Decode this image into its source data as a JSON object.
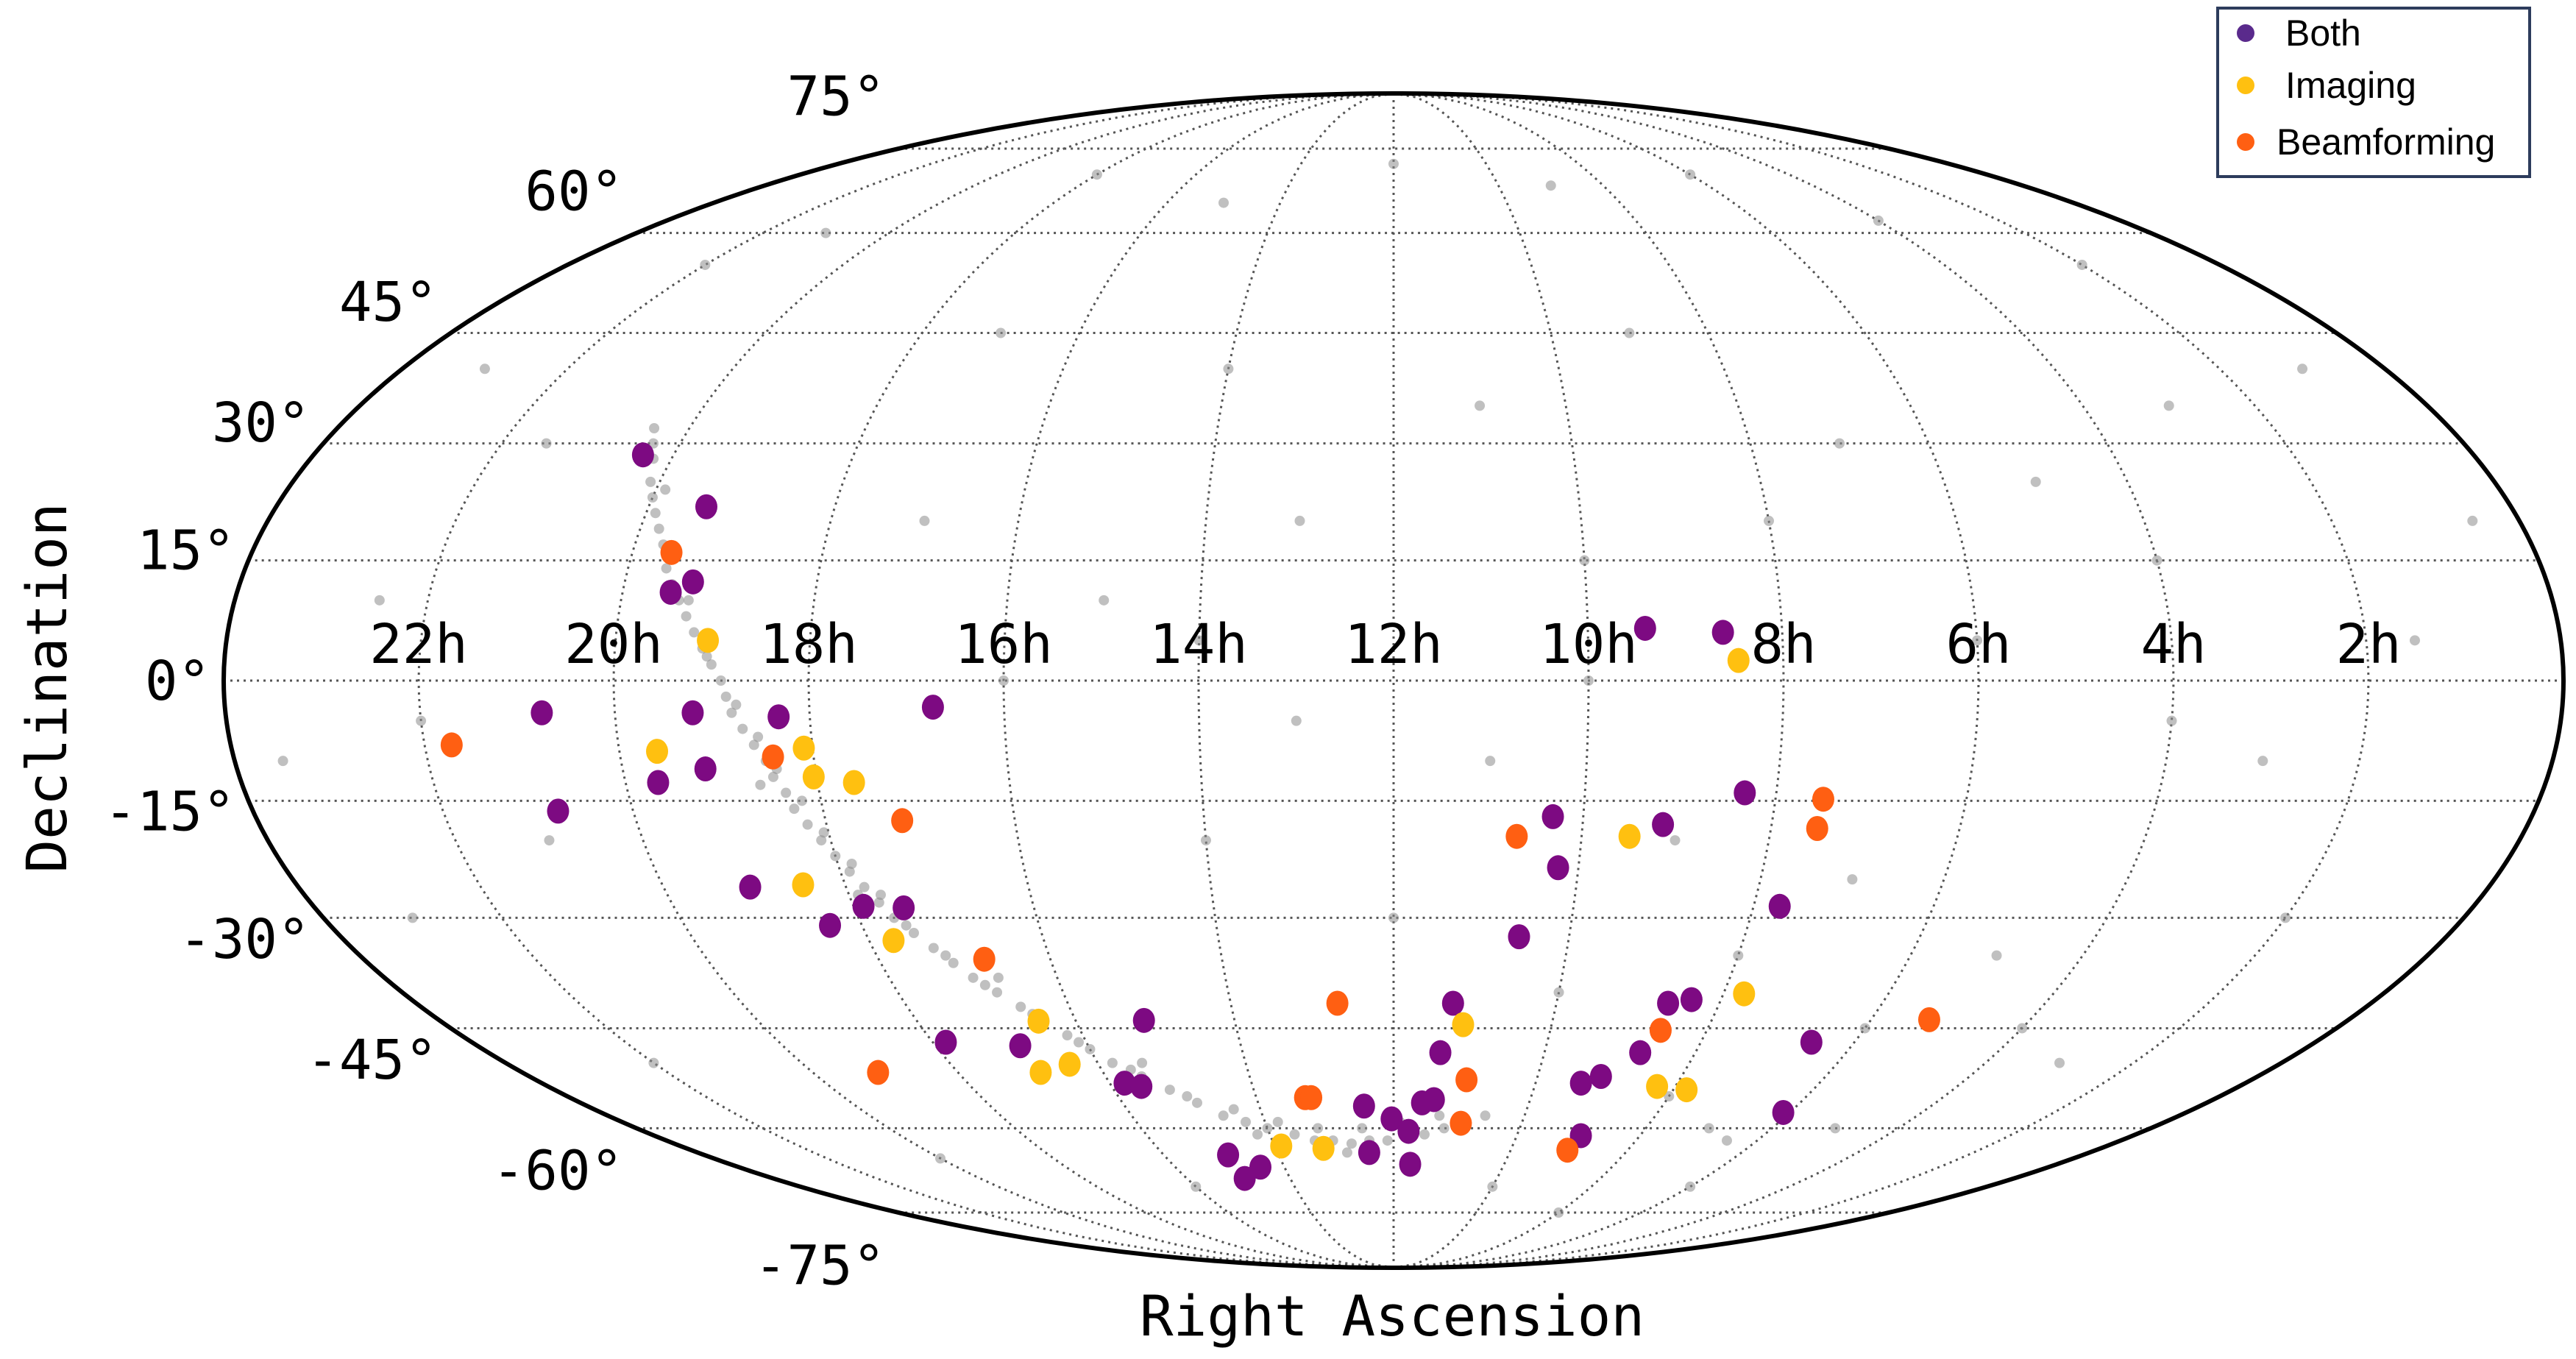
{
  "chart_data": {
    "type": "scatter",
    "projection": "mollweide",
    "ra_direction": "increasing-left",
    "xlabel": "Right Ascension",
    "ylabel": "Declination",
    "x_ticks": [
      "22h",
      "20h",
      "18h",
      "16h",
      "14h",
      "12h",
      "10h",
      "8h",
      "6h",
      "4h",
      "2h"
    ],
    "x_tick_values": [
      22,
      20,
      18,
      16,
      14,
      12,
      10,
      8,
      6,
      4,
      2
    ],
    "y_ticks": [
      "75°",
      "60°",
      "45°",
      "30°",
      "15°",
      "0°",
      "-15°",
      "-30°",
      "-45°",
      "-60°",
      "-75°"
    ],
    "y_tick_values": [
      75,
      60,
      45,
      30,
      15,
      0,
      -15,
      -30,
      -45,
      -60,
      -75
    ],
    "grid": true,
    "legend": {
      "placement": "top-right",
      "entries": [
        "Both",
        "Imaging",
        "Beamforming"
      ]
    },
    "colors": {
      "Both": "#7d0a82",
      "Imaging": "#ffc010",
      "Beamforming": "#ff5f12",
      "background": "#8c8c8c",
      "legend_both": "#5a2a8c"
    },
    "background_points": [
      [
        20.4,
        32
      ],
      [
        20.3,
        30
      ],
      [
        20.2,
        28
      ],
      [
        20.1,
        25
      ],
      [
        20.0,
        23
      ],
      [
        19.9,
        21
      ],
      [
        19.8,
        19
      ],
      [
        19.7,
        17
      ],
      [
        19.6,
        14
      ],
      [
        19.5,
        12
      ],
      [
        19.4,
        10
      ],
      [
        19.3,
        8
      ],
      [
        19.2,
        6
      ],
      [
        19.1,
        4
      ],
      [
        19.0,
        2
      ],
      [
        18.9,
        0
      ],
      [
        18.85,
        -2
      ],
      [
        18.8,
        -4
      ],
      [
        18.7,
        -6
      ],
      [
        18.6,
        -8
      ],
      [
        18.5,
        -10
      ],
      [
        18.45,
        -12
      ],
      [
        18.35,
        -14
      ],
      [
        18.3,
        -16
      ],
      [
        18.2,
        -18
      ],
      [
        18.1,
        -20
      ],
      [
        18.0,
        -22
      ],
      [
        17.9,
        -24
      ],
      [
        17.8,
        -26
      ],
      [
        17.7,
        -28
      ],
      [
        17.6,
        -30
      ],
      [
        17.45,
        -32
      ],
      [
        17.3,
        -34
      ],
      [
        17.15,
        -36
      ],
      [
        17.0,
        -38
      ],
      [
        16.8,
        -40
      ],
      [
        16.6,
        -42
      ],
      [
        16.4,
        -44
      ],
      [
        16.2,
        -46
      ],
      [
        16.0,
        -48
      ],
      [
        15.8,
        -50
      ],
      [
        15.5,
        -52
      ],
      [
        15.2,
        -54
      ],
      [
        14.9,
        -56
      ],
      [
        14.6,
        -58
      ],
      [
        14.3,
        -59
      ],
      [
        14.0,
        -60
      ],
      [
        13.6,
        -61
      ],
      [
        13.3,
        -62
      ],
      [
        13.0,
        -62
      ],
      [
        12.7,
        -62.5
      ],
      [
        12.4,
        -62
      ],
      [
        12.1,
        -62
      ],
      [
        11.8,
        -61.5
      ],
      [
        11.5,
        -61
      ],
      [
        11.2,
        -60
      ],
      [
        10.9,
        -59
      ],
      [
        10.6,
        -58
      ],
      [
        19.9,
        24
      ],
      [
        19.6,
        16
      ],
      [
        19.3,
        10
      ],
      [
        19.05,
        3
      ],
      [
        18.75,
        -3
      ],
      [
        18.55,
        -7
      ],
      [
        18.4,
        -11
      ],
      [
        18.2,
        -15
      ],
      [
        18.05,
        -19
      ],
      [
        17.85,
        -23
      ],
      [
        17.65,
        -27
      ],
      [
        17.5,
        -31
      ],
      [
        17.2,
        -35
      ],
      [
        16.9,
        -39
      ],
      [
        16.5,
        -43
      ],
      [
        16.1,
        -47
      ],
      [
        15.6,
        -51
      ],
      [
        15.0,
        -55
      ],
      [
        14.4,
        -57
      ],
      [
        13.8,
        -59
      ],
      [
        13.2,
        -60
      ],
      [
        12.5,
        -60
      ],
      [
        11.9,
        -59
      ],
      [
        11.3,
        -58
      ],
      [
        18.6,
        -13
      ],
      [
        17.9,
        -27
      ],
      [
        16.7,
        -38
      ],
      [
        15.4,
        -50
      ],
      [
        14.2,
        -61
      ],
      [
        12.8,
        -64
      ],
      [
        23,
        40
      ],
      [
        22,
        55
      ],
      [
        21,
        60
      ],
      [
        18,
        70
      ],
      [
        15,
        65
      ],
      [
        12,
        72
      ],
      [
        9,
        68
      ],
      [
        6,
        70
      ],
      [
        4,
        62
      ],
      [
        2,
        55
      ],
      [
        1,
        40
      ],
      [
        0.5,
        20
      ],
      [
        1.5,
        5
      ],
      [
        3,
        -10
      ],
      [
        2,
        -30
      ],
      [
        4,
        -45
      ],
      [
        5,
        -60
      ],
      [
        6,
        -70
      ],
      [
        8,
        -75
      ],
      [
        10,
        -70
      ],
      [
        16,
        -70
      ],
      [
        20,
        -65
      ],
      [
        22,
        -50
      ],
      [
        23,
        -30
      ],
      [
        23.5,
        -10
      ],
      [
        22.5,
        10
      ],
      [
        21.5,
        30
      ],
      [
        17,
        45
      ],
      [
        14,
        40
      ],
      [
        11,
        35
      ],
      [
        9,
        45
      ],
      [
        7,
        30
      ],
      [
        5,
        25
      ],
      [
        3,
        35
      ],
      [
        13,
        20
      ],
      [
        10,
        15
      ],
      [
        8,
        20
      ],
      [
        6,
        5
      ],
      [
        4,
        -5
      ],
      [
        15,
        10
      ],
      [
        13,
        -5
      ],
      [
        11,
        -10
      ],
      [
        9,
        -20
      ],
      [
        7,
        -25
      ],
      [
        5,
        -35
      ],
      [
        3,
        -50
      ],
      [
        14,
        -20
      ],
      [
        12,
        -30
      ],
      [
        10,
        -40
      ],
      [
        8,
        -55
      ],
      [
        7,
        -60
      ],
      [
        6.5,
        -62
      ],
      [
        21,
        -20
      ],
      [
        22,
        -5
      ],
      [
        17,
        20
      ],
      [
        16,
        0
      ],
      [
        14,
        5
      ],
      [
        10,
        0
      ],
      [
        8,
        -35
      ],
      [
        6,
        -45
      ],
      [
        4,
        15
      ]
    ],
    "series": [
      {
        "name": "Both",
        "points": [
          [
            20.34,
            28.5
          ],
          [
            19.38,
            21.8
          ],
          [
            19.29,
            12.3
          ],
          [
            19.5,
            11
          ],
          [
            19.2,
            -4
          ],
          [
            20.75,
            -4
          ],
          [
            18.32,
            -4.5
          ],
          [
            19.14,
            -11
          ],
          [
            19.66,
            -12.7
          ],
          [
            20.79,
            -16.3
          ],
          [
            16.73,
            -3.3
          ],
          [
            19.05,
            -26
          ],
          [
            17.89,
            -28.5
          ],
          [
            17.45,
            -28.7
          ],
          [
            18.36,
            -31
          ],
          [
            17.83,
            -47
          ],
          [
            16.89,
            -47.5
          ],
          [
            15.14,
            -43.9
          ],
          [
            15.79,
            -53
          ],
          [
            15.58,
            -53.5
          ],
          [
            14.88,
            -64.4
          ],
          [
            14.44,
            -66.5
          ],
          [
            14.88,
            -68.5
          ],
          [
            12.42,
            -64
          ],
          [
            12.44,
            -56.5
          ],
          [
            12.03,
            -58.5
          ],
          [
            11.76,
            -60.5
          ],
          [
            11.7,
            -66
          ],
          [
            11.58,
            -56
          ],
          [
            11.41,
            -55.5
          ],
          [
            11.38,
            -48.5
          ],
          [
            11.27,
            -41.5
          ],
          [
            10.57,
            -32.5
          ],
          [
            10.32,
            -17
          ],
          [
            10.22,
            -23.5
          ],
          [
            9.15,
            -18
          ],
          [
            9.41,
            6.5
          ],
          [
            8.61,
            6
          ],
          [
            8.33,
            -14
          ],
          [
            7.71,
            -28.5
          ],
          [
            8.63,
            -41.5
          ],
          [
            8.36,
            -41
          ],
          [
            8.73,
            -48.5
          ],
          [
            9.12,
            -52
          ],
          [
            9.36,
            -53
          ],
          [
            8.96,
            -61.2
          ],
          [
            6.1,
            -57.5
          ],
          [
            6.56,
            -47
          ]
        ]
      },
      {
        "name": "Imaging",
        "points": [
          [
            19.05,
            5
          ],
          [
            8.46,
            2.5
          ],
          [
            19.61,
            -8.8
          ],
          [
            18.09,
            -8.4
          ],
          [
            18.03,
            -12
          ],
          [
            17.62,
            -12.7
          ],
          [
            18.46,
            -25.7
          ],
          [
            17.72,
            -33
          ],
          [
            16.47,
            -44
          ],
          [
            16.86,
            -51.4
          ],
          [
            16.39,
            -50.2
          ],
          [
            13.89,
            -62.9
          ],
          [
            13.19,
            -63.3
          ],
          [
            11.12,
            -44.5
          ],
          [
            9.49,
            -19.5
          ],
          [
            7.75,
            -40.2
          ],
          [
            8.26,
            -53.5
          ],
          [
            7.81,
            -54
          ]
        ]
      },
      {
        "name": "Beamforming",
        "points": [
          [
            21.72,
            -8
          ],
          [
            19.59,
            16
          ],
          [
            18.42,
            -9.5
          ],
          [
            17.19,
            -17.5
          ],
          [
            16.77,
            -35.5
          ],
          [
            19.1,
            -51.4
          ],
          [
            12.69,
            -41.5
          ],
          [
            13.29,
            -55.2
          ],
          [
            13.2,
            -55.2
          ],
          [
            10.95,
            -59.2
          ],
          [
            10.98,
            -52.5
          ],
          [
            10.69,
            -19.5
          ],
          [
            9.03,
            -63.6
          ],
          [
            8.59,
            -45.3
          ],
          [
            7.5,
            -14.8
          ],
          [
            7.51,
            -18.5
          ],
          [
            5.27,
            -43.8
          ]
        ]
      }
    ]
  }
}
